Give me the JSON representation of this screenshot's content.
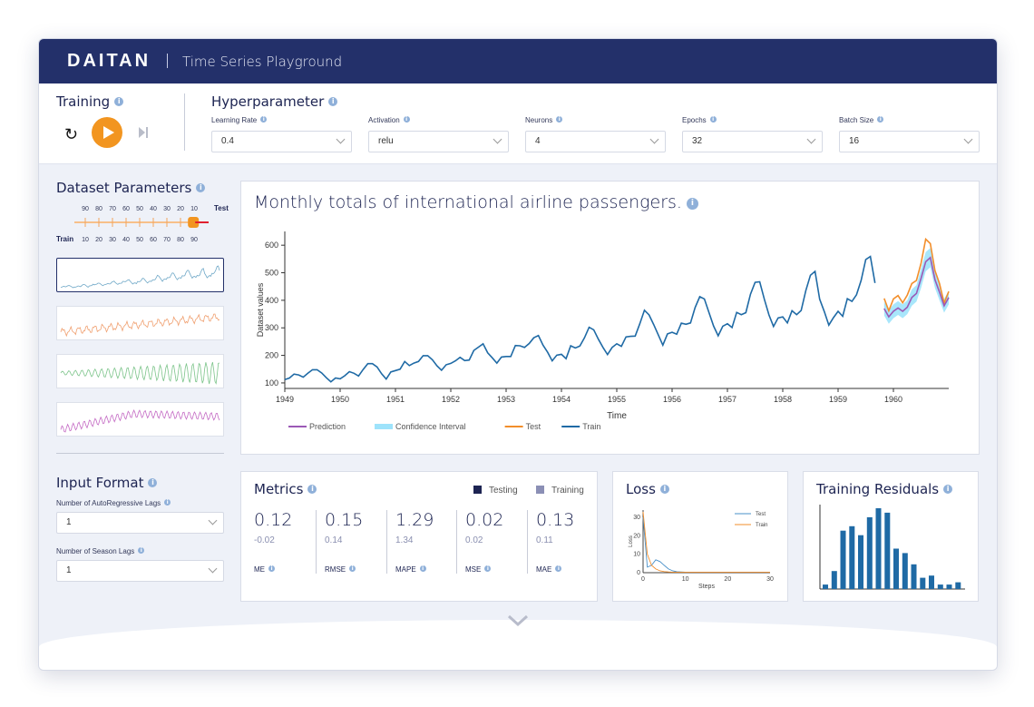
{
  "header": {
    "logo": "DAITAN",
    "title": "Time Series Playground"
  },
  "training": {
    "title": "Training"
  },
  "hyperparameter": {
    "title": "Hyperparameter",
    "fields": [
      {
        "label": "Learning Rate",
        "value": "0.4"
      },
      {
        "label": "Activation",
        "value": "relu"
      },
      {
        "label": "Neurons",
        "value": "4"
      },
      {
        "label": "Epochs",
        "value": "32"
      },
      {
        "label": "Batch Size",
        "value": "16"
      }
    ]
  },
  "dataset": {
    "title": "Dataset Parameters",
    "test_label": "Test",
    "train_label": "Train",
    "split_top": [
      "90",
      "80",
      "70",
      "60",
      "50",
      "40",
      "30",
      "20",
      "10"
    ],
    "split_bottom": [
      "10",
      "20",
      "30",
      "40",
      "50",
      "60",
      "70",
      "80",
      "90"
    ],
    "split_train_fraction": 0.9,
    "thumb_colors": [
      "#6fa8c7",
      "#f0a070",
      "#7cc48a",
      "#c46ac4"
    ]
  },
  "input_format": {
    "title": "Input Format",
    "ar_label": "Number of AutoRegressive Lags",
    "ar_value": "1",
    "season_label": "Number of Season Lags",
    "season_value": "1"
  },
  "chart": {
    "title": "Monthly totals of international airline passengers."
  },
  "chart_data": {
    "type": "line",
    "title": "Monthly totals of international airline passengers.",
    "xlabel": "Time",
    "ylabel": "Dataset values",
    "xlim": [
      1949,
      1961
    ],
    "ylim": [
      80,
      650
    ],
    "xticks": [
      "1949",
      "1950",
      "1951",
      "1952",
      "1953",
      "1954",
      "1955",
      "1956",
      "1957",
      "1958",
      "1959",
      "1960"
    ],
    "yticks": [
      "100",
      "200",
      "300",
      "400",
      "500",
      "600"
    ],
    "legend": [
      "Prediction",
      "Confidence Interval",
      "Test",
      "Train"
    ],
    "colors": {
      "Prediction": "#9b59b6",
      "Confidence Interval": "#9ee3fb",
      "Test": "#f28e2b",
      "Train": "#1f6aa5"
    },
    "train_start": 1949,
    "train": [
      112,
      118,
      132,
      129,
      121,
      135,
      148,
      148,
      136,
      119,
      104,
      118,
      115,
      126,
      141,
      135,
      125,
      149,
      170,
      170,
      158,
      133,
      114,
      140,
      145,
      150,
      178,
      163,
      172,
      178,
      199,
      199,
      184,
      162,
      146,
      166,
      171,
      180,
      193,
      181,
      183,
      218,
      230,
      242,
      209,
      191,
      172,
      194,
      196,
      196,
      236,
      235,
      229,
      243,
      264,
      272,
      237,
      211,
      180,
      201,
      204,
      188,
      235,
      227,
      234,
      264,
      302,
      293,
      259,
      229,
      203,
      229,
      242,
      233,
      267,
      269,
      270,
      315,
      364,
      347,
      312,
      274,
      237,
      278,
      284,
      277,
      317,
      313,
      318,
      374,
      413,
      405,
      355,
      306,
      271,
      306,
      315,
      301,
      356,
      348,
      355,
      422,
      465,
      467,
      404,
      347,
      305,
      336,
      340,
      318,
      362,
      348,
      363,
      435,
      491,
      505,
      404,
      359,
      310,
      337,
      360,
      342,
      406,
      396,
      420,
      472,
      548,
      559,
      463
    ],
    "test_start": 1959.75,
    "test": [
      407,
      362,
      405,
      417,
      391,
      419,
      461,
      472,
      535,
      622,
      606,
      508,
      461,
      390,
      432
    ],
    "prediction": [
      370,
      340,
      360,
      372,
      360,
      375,
      410,
      425,
      480,
      540,
      555,
      475,
      430,
      380,
      410
    ],
    "conf_upper": [
      395,
      365,
      385,
      397,
      385,
      400,
      440,
      455,
      515,
      575,
      590,
      505,
      460,
      405,
      435
    ],
    "conf_lower": [
      345,
      315,
      335,
      347,
      335,
      350,
      380,
      395,
      445,
      505,
      520,
      445,
      400,
      355,
      385
    ]
  },
  "metrics": {
    "title": "Metrics",
    "legend_testing": "Testing",
    "legend_training": "Training",
    "color_testing": "#1d2452",
    "color_training": "#8b8fb5",
    "items": [
      {
        "name": "ME",
        "test": "0.12",
        "train": "-0.02"
      },
      {
        "name": "RMSE",
        "test": "0.15",
        "train": "0.14"
      },
      {
        "name": "MAPE",
        "test": "1.29",
        "train": "1.34"
      },
      {
        "name": "MSE",
        "test": "0.02",
        "train": "0.02"
      },
      {
        "name": "MAE",
        "test": "0.13",
        "train": "0.11"
      }
    ]
  },
  "loss": {
    "title": "Loss",
    "xlabel": "Steps",
    "ylabel": "Loss",
    "xticks": [
      "0",
      "10",
      "20",
      "30"
    ],
    "yticks": [
      "0",
      "10",
      "20",
      "30"
    ],
    "legend_test": "Test",
    "legend_train": "Train",
    "test": [
      30,
      3,
      4,
      7,
      6,
      4,
      2,
      1,
      0.5,
      0.4,
      0.3,
      0.3,
      0.3,
      0.3,
      0.3,
      0.3,
      0.3,
      0.3,
      0.3,
      0.3,
      0.3,
      0.3,
      0.3,
      0.3,
      0.3,
      0.3,
      0.3,
      0.3,
      0.3,
      0.3,
      0.3
    ],
    "train": [
      33,
      10,
      4,
      2,
      1,
      0.6,
      0.4,
      0.3,
      0.3,
      0.3,
      0.3,
      0.3,
      0.3,
      0.3,
      0.3,
      0.3,
      0.3,
      0.3,
      0.3,
      0.3,
      0.3,
      0.3,
      0.3,
      0.3,
      0.3,
      0.3,
      0.3,
      0.3,
      0.3,
      0.3,
      0.3
    ]
  },
  "residuals": {
    "title": "Training Residuals",
    "bars": [
      2,
      8,
      26,
      28,
      24,
      32,
      36,
      34,
      18,
      16,
      11,
      5,
      6,
      2,
      2,
      3
    ]
  }
}
